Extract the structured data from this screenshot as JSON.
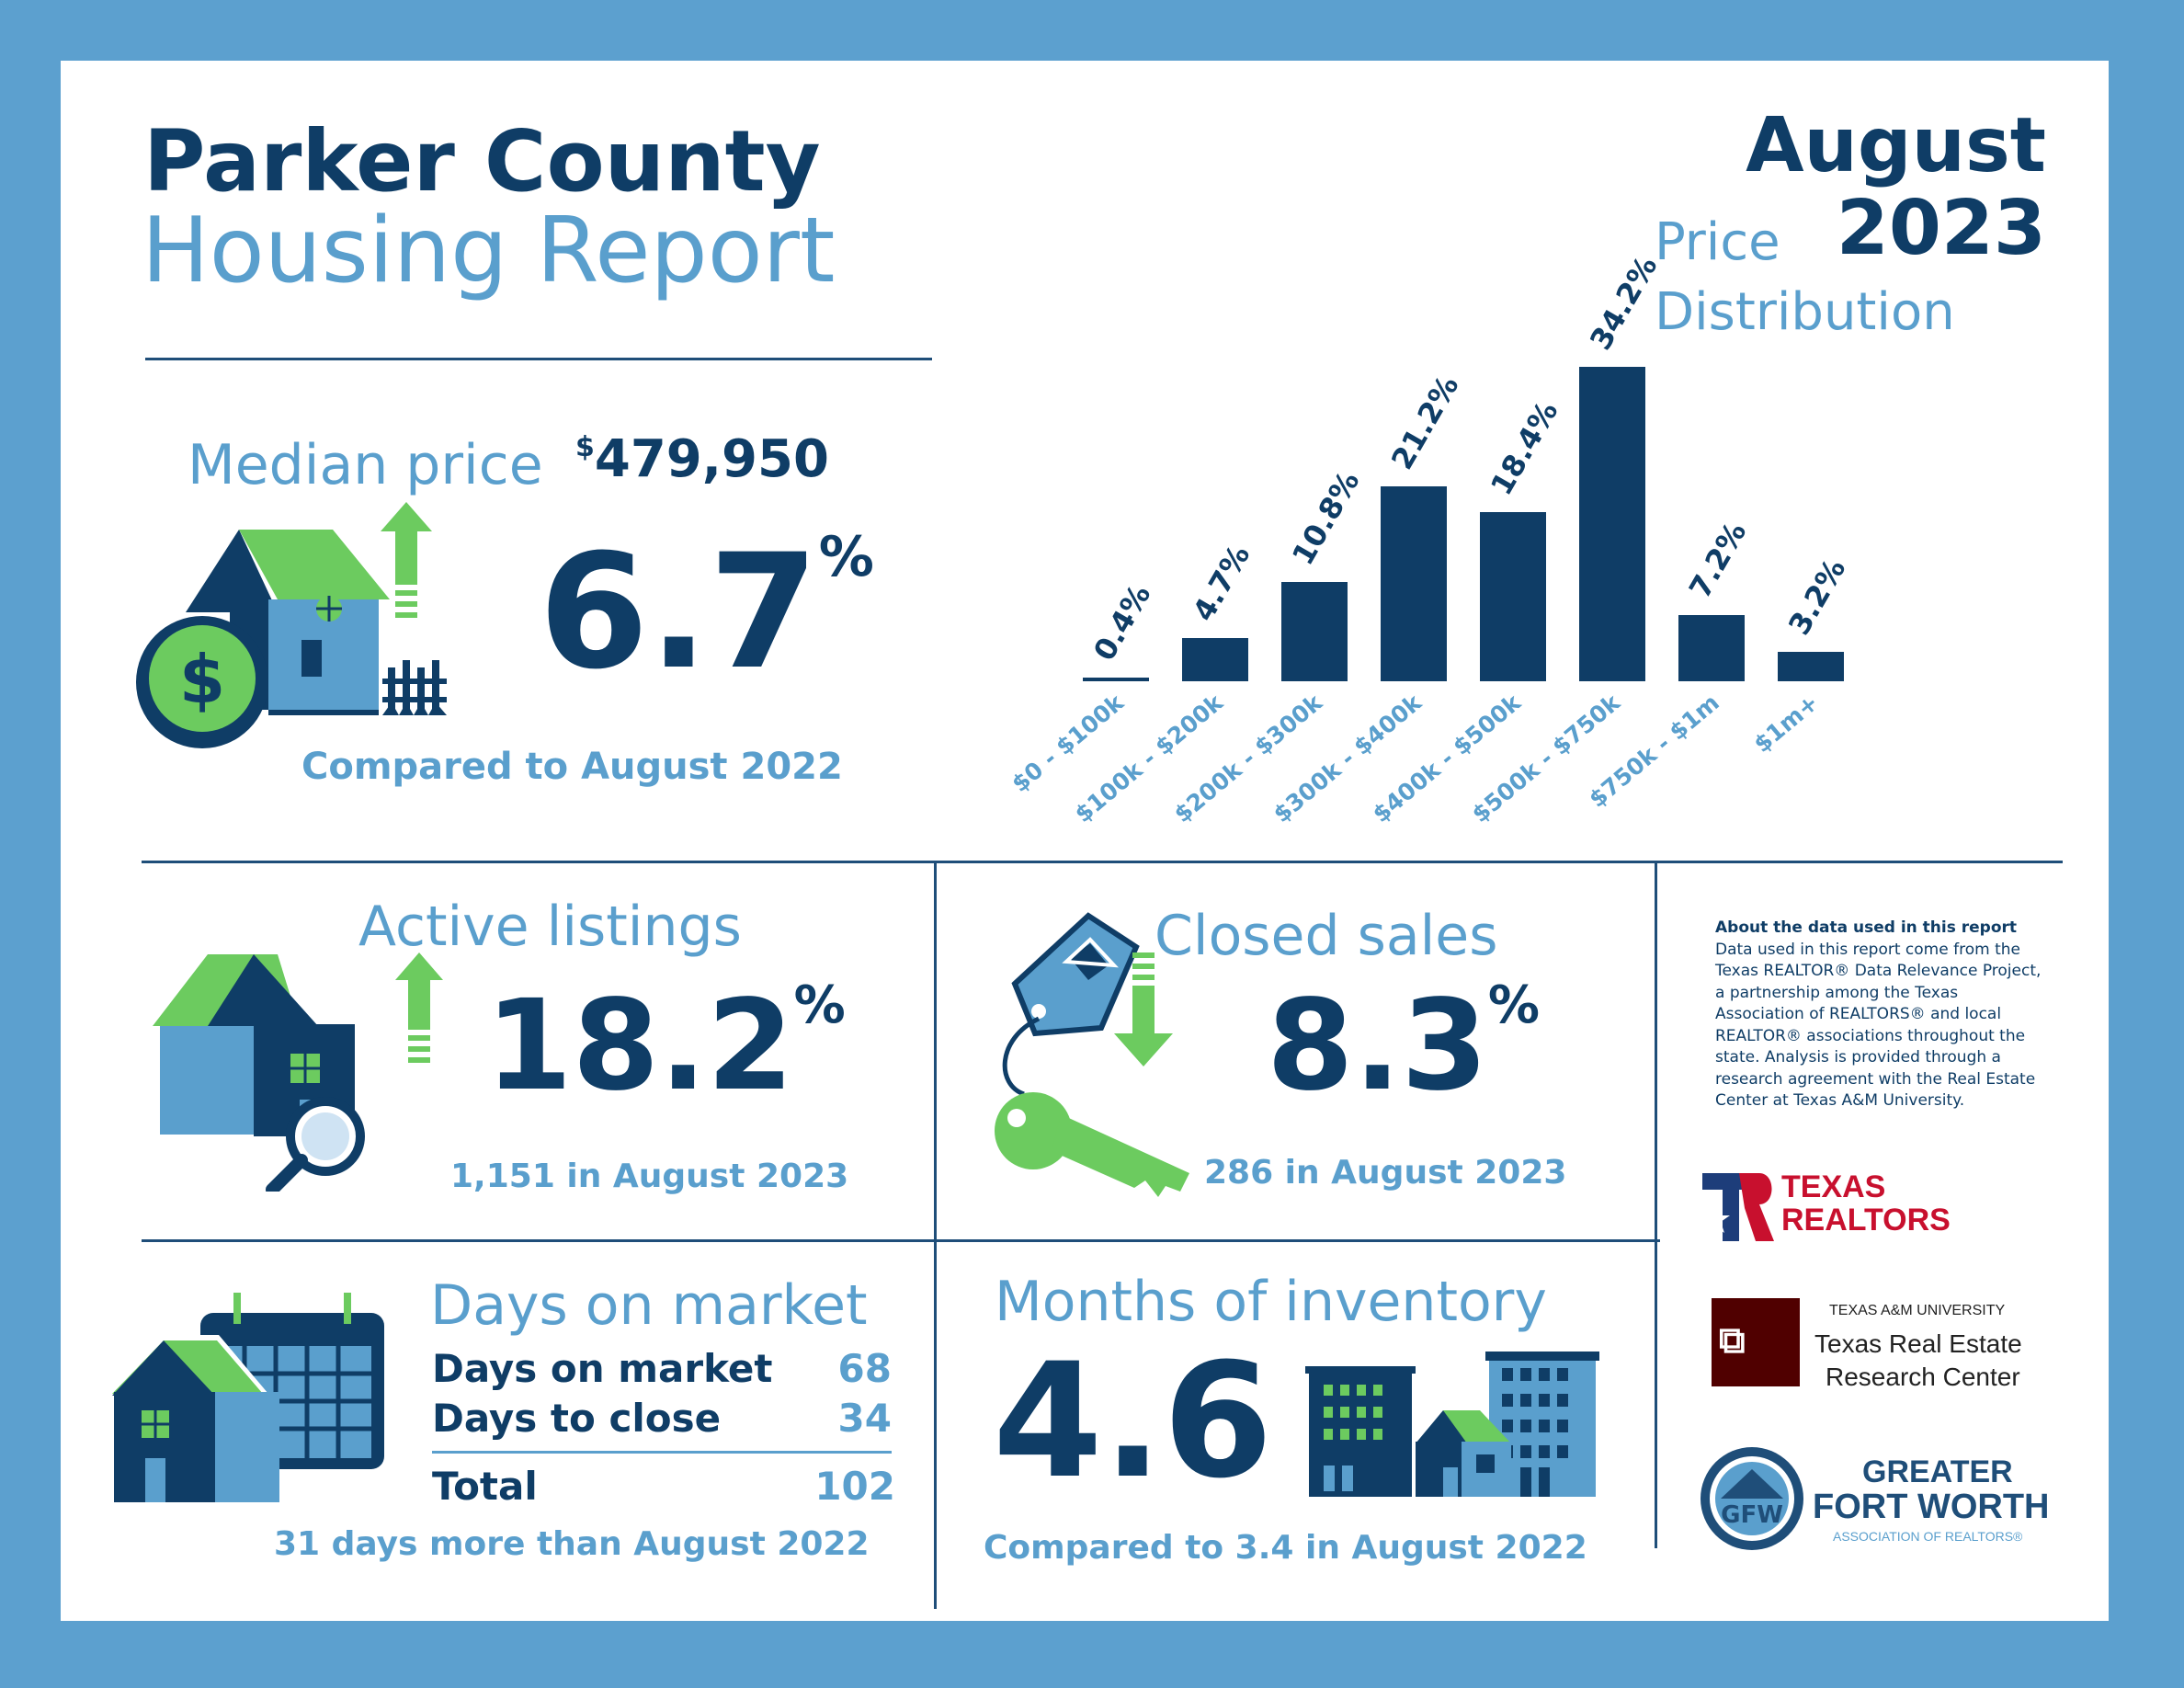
{
  "header": {
    "title_line1": "Parker County",
    "title_line2": "Housing Report",
    "month": "August",
    "year": "2023"
  },
  "median_price": {
    "label": "Median price",
    "currency_symbol": "$",
    "value": "479,950",
    "change": "6.7",
    "percent_sign": "%",
    "direction": "up",
    "comparison": "Compared to August 2022"
  },
  "chart_title": {
    "line1": "Price",
    "line2": "Distribution"
  },
  "chart_data": {
    "type": "bar",
    "categories": [
      "$0 - $100k",
      "$100k - $200k",
      "$200k - $300k",
      "$300k - $400k",
      "$400k - $500k",
      "$500k - $750k",
      "$750k - $1m",
      "$1m+"
    ],
    "values": [
      0.4,
      4.7,
      10.8,
      21.2,
      18.4,
      34.2,
      7.2,
      3.2
    ],
    "value_labels": [
      "0.4%",
      "4.7%",
      "10.8%",
      "21.2%",
      "18.4%",
      "34.2%",
      "7.2%",
      "3.2%"
    ],
    "ylim": [
      0,
      36
    ],
    "grid": false,
    "bar_color": "#0f3d66",
    "label_color": "#5a9fcd"
  },
  "active_listings": {
    "label": "Active listings",
    "change": "18.2",
    "percent_sign": "%",
    "direction": "up",
    "detail": "1,151 in August 2023"
  },
  "closed_sales": {
    "label": "Closed sales",
    "change": "8.3",
    "percent_sign": "%",
    "direction": "down",
    "detail": "286 in August 2023"
  },
  "days_on_market": {
    "label": "Days on market",
    "rows": [
      {
        "label": "Days on market",
        "value": "68"
      },
      {
        "label": "Days to close",
        "value": "34"
      }
    ],
    "total_label": "Total",
    "total_value": "102",
    "comparison": "31 days more than August 2022"
  },
  "months_inventory": {
    "label": "Months of inventory",
    "value": "4.6",
    "comparison": "Compared to 3.4 in August 2022"
  },
  "about": {
    "heading": "About the data used in this report",
    "lines": [
      "Data used in this report come from the",
      "Texas REALTOR® Data Relevance Project,",
      "a partnership among the Texas",
      "Association of REALTORS® and local",
      "REALTOR® associations throughout the",
      "state. Analysis is provided through a",
      "research agreement with the Real Estate",
      "Center at Texas A&M University."
    ]
  },
  "logos": {
    "texas_realtors": [
      "TEXAS",
      "REALTORS"
    ],
    "tamu_small": "TEXAS A&M UNIVERSITY",
    "tamu_line1": "Texas Real Estate",
    "tamu_line2": "Research Center",
    "gfw_line1": "GREATER",
    "gfw_line2": "FORT WORTH",
    "gfw_line3": "ASSOCIATION OF REALTORS®"
  },
  "colors": {
    "navy": "#0f3d66",
    "light_blue": "#5a9fcd",
    "green": "#6ccb5f",
    "border": "#5ca0cf"
  }
}
